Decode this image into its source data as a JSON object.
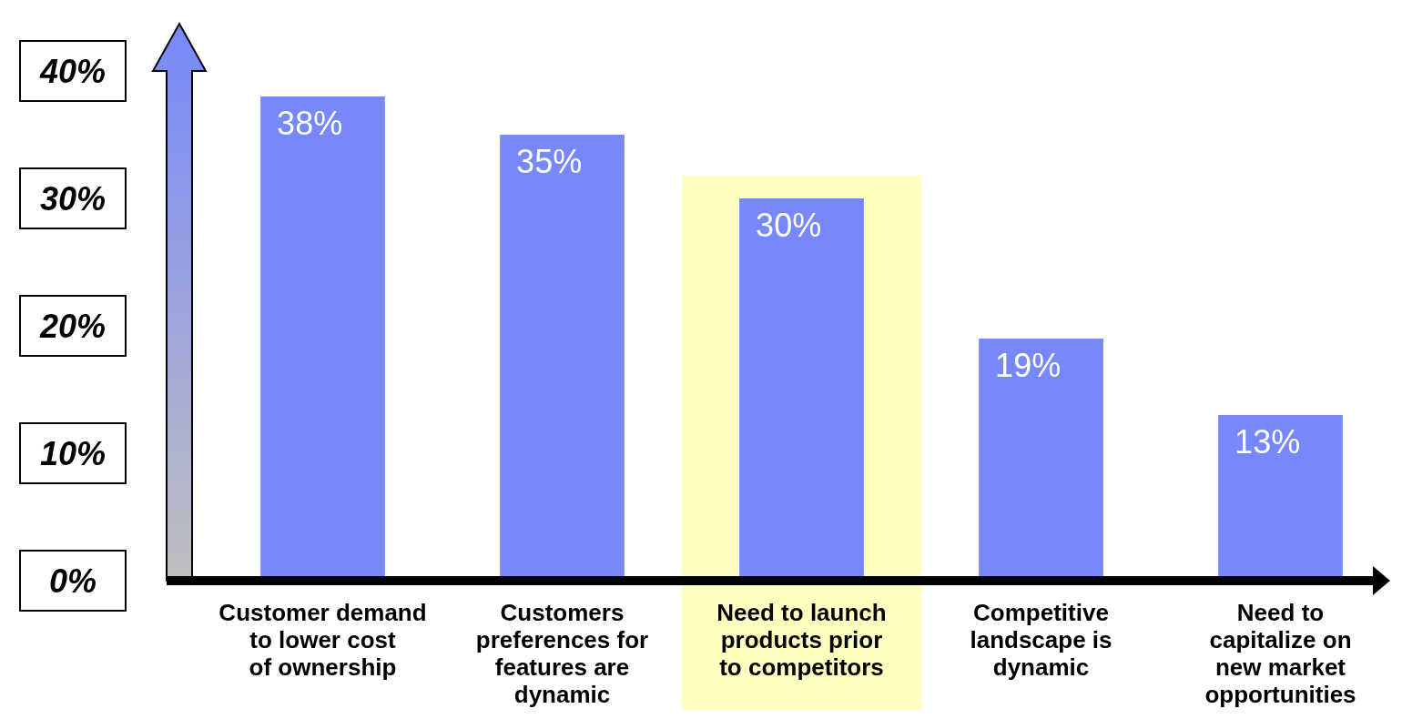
{
  "chart_data": {
    "type": "bar",
    "categories": [
      "Customer demand to lower cost of ownership",
      "Customers preferences for features are dynamic",
      "Need to launch products prior to competitors",
      "Competitive landscape is dynamic",
      "Need to capitalize on new market opportunities"
    ],
    "values": [
      38,
      35,
      30,
      19,
      13
    ],
    "color": "#7788fa",
    "ylim": [
      0,
      40
    ],
    "yticks": [
      {
        "value": 0,
        "label": "0%"
      },
      {
        "value": 10,
        "label": "10%"
      },
      {
        "value": 20,
        "label": "20%"
      },
      {
        "value": 30,
        "label": "30%"
      },
      {
        "value": 40,
        "label": "40%"
      }
    ],
    "value_labels": [
      "38%",
      "35%",
      "30%",
      "19%",
      "13%"
    ],
    "bands": [
      {
        "axis": "x",
        "from": "Need to launch products prior to competitors",
        "to": "Need to launch products prior to competitors",
        "color": "#ffffc0"
      }
    ],
    "grid": false
  }
}
